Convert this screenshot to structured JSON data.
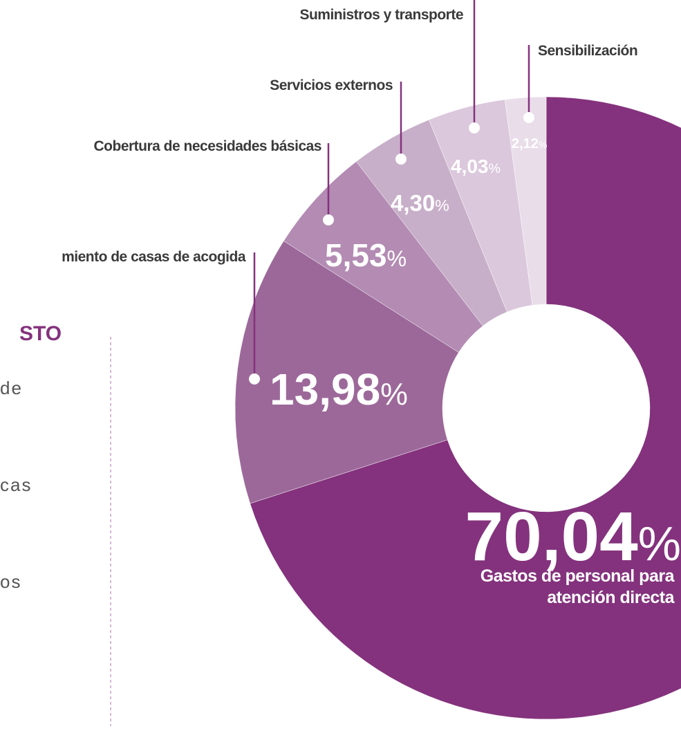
{
  "chart_data": {
    "type": "donut",
    "categories": [
      "Gastos de personal para atención directa",
      "miento de casas de acogida",
      "Cobertura de necesidades básicas",
      "Servicios externos",
      "Suministros y transporte",
      "Sensibilización"
    ],
    "values": [
      70.04,
      13.98,
      5.53,
      4.3,
      4.03,
      2.12
    ],
    "value_labels": [
      "70,04%",
      "13,98%",
      "5,53%",
      "4,30%",
      "4,03%",
      "2,12%"
    ],
    "colors": [
      "#84327d",
      "#9c6899",
      "#b38bb3",
      "#c8afc9",
      "#dbc8dc",
      "#e9dde9"
    ]
  },
  "left_panel": {
    "heading": "STO",
    "items": [
      "de",
      "cas",
      "os"
    ]
  }
}
